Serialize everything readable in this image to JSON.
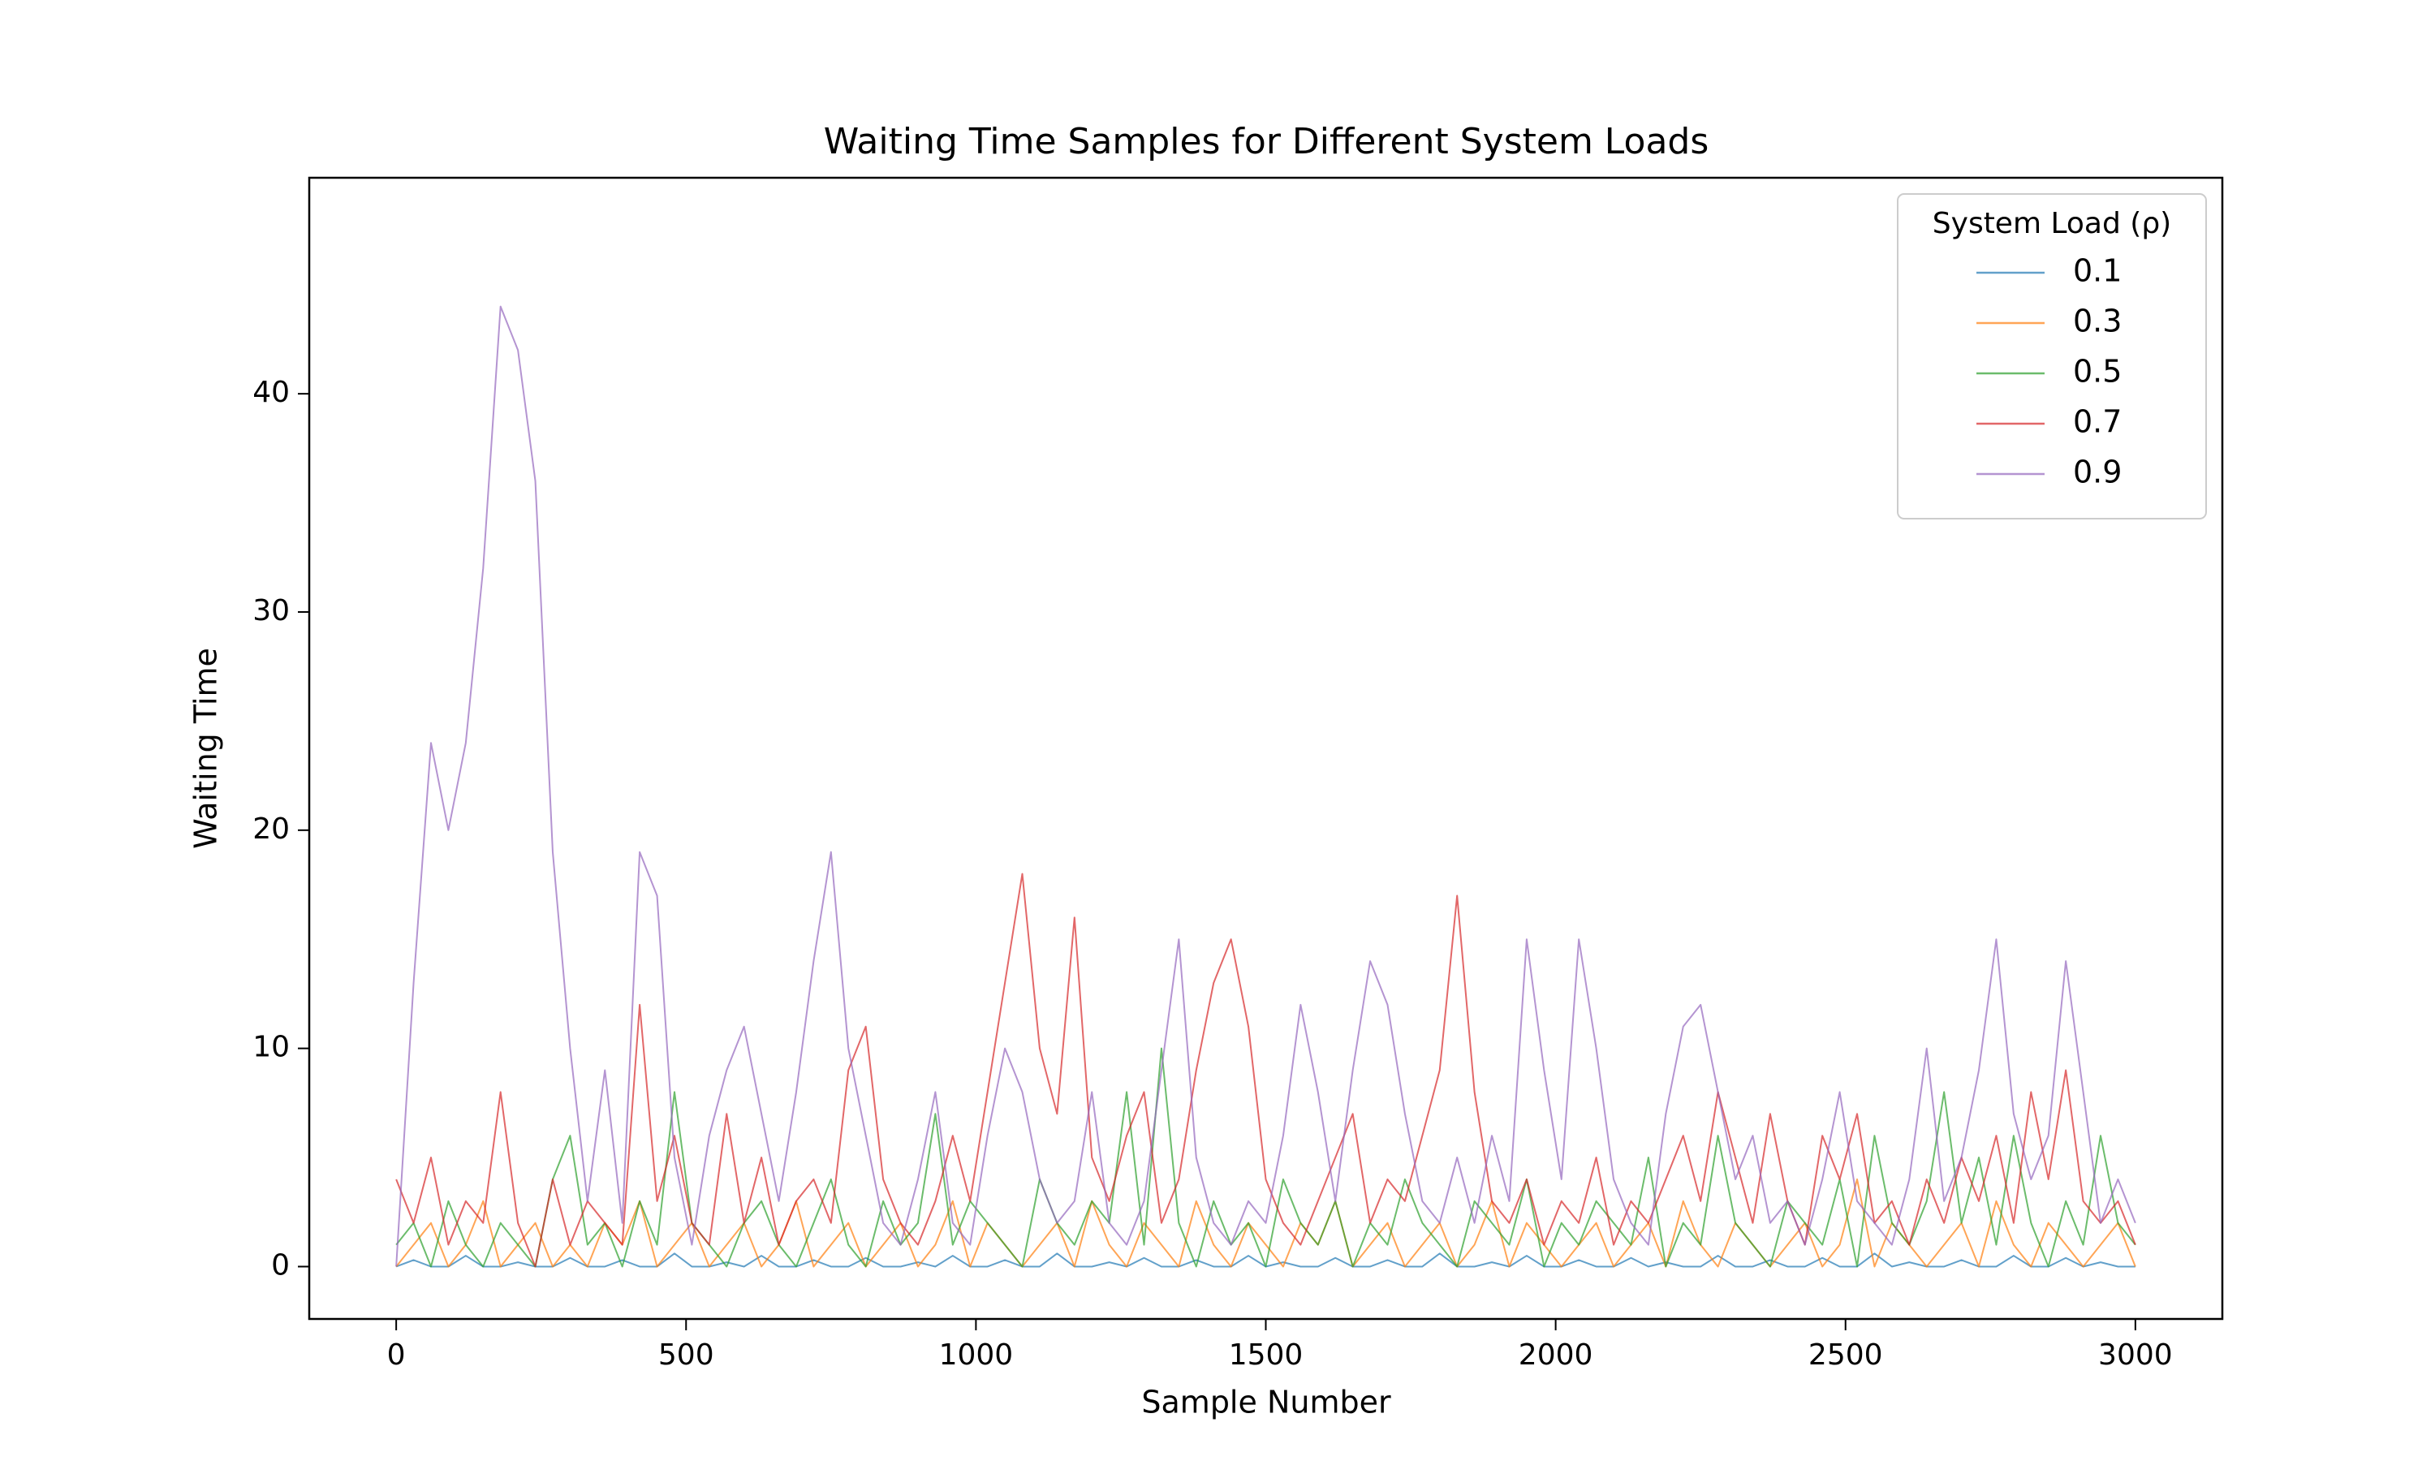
{
  "chart_data": {
    "type": "line",
    "title": "Waiting Time Samples for Different System Loads",
    "xlabel": "Sample Number",
    "ylabel": "Waiting Time",
    "legend_title": "System Load (ρ)",
    "legend": "upper right",
    "xlim": [
      -150,
      3150
    ],
    "ylim": [
      -2.4,
      49.9
    ],
    "xticks": [
      0,
      500,
      1000,
      1500,
      2000,
      2500,
      3000
    ],
    "yticks": [
      0,
      10,
      20,
      30,
      40
    ],
    "x": [
      0,
      30,
      60,
      90,
      120,
      150,
      180,
      210,
      240,
      270,
      300,
      330,
      360,
      390,
      420,
      450,
      480,
      510,
      540,
      570,
      600,
      630,
      660,
      690,
      720,
      750,
      780,
      810,
      840,
      870,
      900,
      930,
      960,
      990,
      1020,
      1050,
      1080,
      1110,
      1140,
      1170,
      1200,
      1230,
      1260,
      1290,
      1320,
      1350,
      1380,
      1410,
      1440,
      1470,
      1500,
      1530,
      1560,
      1590,
      1620,
      1650,
      1680,
      1710,
      1740,
      1770,
      1800,
      1830,
      1860,
      1890,
      1920,
      1950,
      1980,
      2010,
      2040,
      2070,
      2100,
      2130,
      2160,
      2190,
      2220,
      2250,
      2280,
      2310,
      2340,
      2370,
      2400,
      2430,
      2460,
      2490,
      2520,
      2550,
      2580,
      2610,
      2640,
      2670,
      2700,
      2730,
      2760,
      2790,
      2820,
      2850,
      2880,
      2910,
      2940,
      2970,
      3000
    ],
    "series": [
      {
        "name": "0.1",
        "color": "#1f77b4",
        "values": [
          0,
          0.3,
          0,
          0,
          0.5,
          0,
          0,
          0.2,
          0,
          0,
          0.4,
          0,
          0,
          0.3,
          0,
          0,
          0.6,
          0,
          0,
          0.2,
          0,
          0.5,
          0,
          0,
          0.3,
          0,
          0,
          0.4,
          0,
          0,
          0.2,
          0,
          0.5,
          0,
          0,
          0.3,
          0,
          0,
          0.6,
          0,
          0,
          0.2,
          0,
          0.4,
          0,
          0,
          0.3,
          0,
          0,
          0.5,
          0,
          0.2,
          0,
          0,
          0.4,
          0,
          0,
          0.3,
          0,
          0,
          0.6,
          0,
          0,
          0.2,
          0,
          0.5,
          0,
          0,
          0.3,
          0,
          0,
          0.4,
          0,
          0.2,
          0,
          0,
          0.5,
          0,
          0,
          0.3,
          0,
          0,
          0.4,
          0,
          0,
          0.6,
          0,
          0.2,
          0,
          0,
          0.3,
          0,
          0,
          0.5,
          0,
          0,
          0.4,
          0,
          0.2,
          0,
          0
        ]
      },
      {
        "name": "0.3",
        "color": "#ff7f0e",
        "values": [
          0,
          1,
          2,
          0,
          1,
          3,
          0,
          1,
          2,
          0,
          1,
          0,
          2,
          1,
          3,
          0,
          1,
          2,
          0,
          1,
          2,
          0,
          1,
          3,
          0,
          1,
          2,
          0,
          1,
          2,
          0,
          1,
          3,
          0,
          2,
          1,
          0,
          1,
          2,
          0,
          3,
          1,
          0,
          2,
          1,
          0,
          3,
          1,
          0,
          2,
          1,
          0,
          2,
          1,
          3,
          0,
          1,
          2,
          0,
          1,
          2,
          0,
          1,
          3,
          0,
          2,
          1,
          0,
          1,
          2,
          0,
          1,
          2,
          0,
          3,
          1,
          0,
          2,
          1,
          0,
          1,
          2,
          0,
          1,
          4,
          0,
          2,
          1,
          0,
          1,
          2,
          0,
          3,
          1,
          0,
          2,
          1,
          0,
          1,
          2,
          0
        ]
      },
      {
        "name": "0.5",
        "color": "#2ca02c",
        "values": [
          1,
          2,
          0,
          3,
          1,
          0,
          2,
          1,
          0,
          4,
          6,
          1,
          2,
          0,
          3,
          1,
          8,
          2,
          1,
          0,
          2,
          3,
          1,
          0,
          2,
          4,
          1,
          0,
          3,
          1,
          2,
          7,
          1,
          3,
          2,
          1,
          0,
          4,
          2,
          1,
          3,
          2,
          8,
          1,
          10,
          2,
          0,
          3,
          1,
          2,
          0,
          4,
          2,
          1,
          3,
          0,
          2,
          1,
          4,
          2,
          1,
          0,
          3,
          2,
          1,
          4,
          0,
          2,
          1,
          3,
          2,
          1,
          5,
          0,
          2,
          1,
          6,
          2,
          1,
          0,
          3,
          2,
          1,
          4,
          0,
          6,
          2,
          1,
          3,
          8,
          2,
          5,
          1,
          6,
          2,
          0,
          3,
          1,
          6,
          2,
          1
        ]
      },
      {
        "name": "0.7",
        "color": "#d62728",
        "values": [
          4,
          2,
          5,
          1,
          3,
          2,
          8,
          2,
          0,
          4,
          1,
          3,
          2,
          1,
          12,
          3,
          6,
          2,
          1,
          7,
          2,
          5,
          1,
          3,
          4,
          2,
          9,
          11,
          4,
          2,
          1,
          3,
          6,
          3,
          8,
          13,
          18,
          10,
          7,
          16,
          5,
          3,
          6,
          8,
          2,
          4,
          9,
          13,
          15,
          11,
          4,
          2,
          1,
          3,
          5,
          7,
          2,
          4,
          3,
          6,
          9,
          17,
          8,
          3,
          2,
          4,
          1,
          3,
          2,
          5,
          1,
          3,
          2,
          4,
          6,
          3,
          8,
          5,
          2,
          7,
          3,
          1,
          6,
          4,
          7,
          2,
          3,
          1,
          4,
          2,
          5,
          3,
          6,
          2,
          8,
          4,
          9,
          3,
          2,
          3,
          1
        ]
      },
      {
        "name": "0.9",
        "color": "#9467bd",
        "values": [
          0,
          13,
          24,
          20,
          24,
          32,
          44,
          42,
          36,
          19,
          10,
          3,
          9,
          2,
          19,
          17,
          5,
          1,
          6,
          9,
          11,
          7,
          3,
          8,
          14,
          19,
          10,
          6,
          2,
          1,
          4,
          8,
          2,
          1,
          6,
          10,
          8,
          4,
          2,
          3,
          8,
          2,
          1,
          3,
          9,
          15,
          5,
          2,
          1,
          3,
          2,
          6,
          12,
          8,
          3,
          9,
          14,
          12,
          7,
          3,
          2,
          5,
          2,
          6,
          3,
          15,
          9,
          4,
          15,
          10,
          4,
          2,
          1,
          7,
          11,
          12,
          8,
          4,
          6,
          2,
          3,
          1,
          4,
          8,
          3,
          2,
          1,
          4,
          10,
          3,
          5,
          9,
          15,
          7,
          4,
          6,
          14,
          8,
          2,
          4,
          2
        ]
      }
    ]
  }
}
